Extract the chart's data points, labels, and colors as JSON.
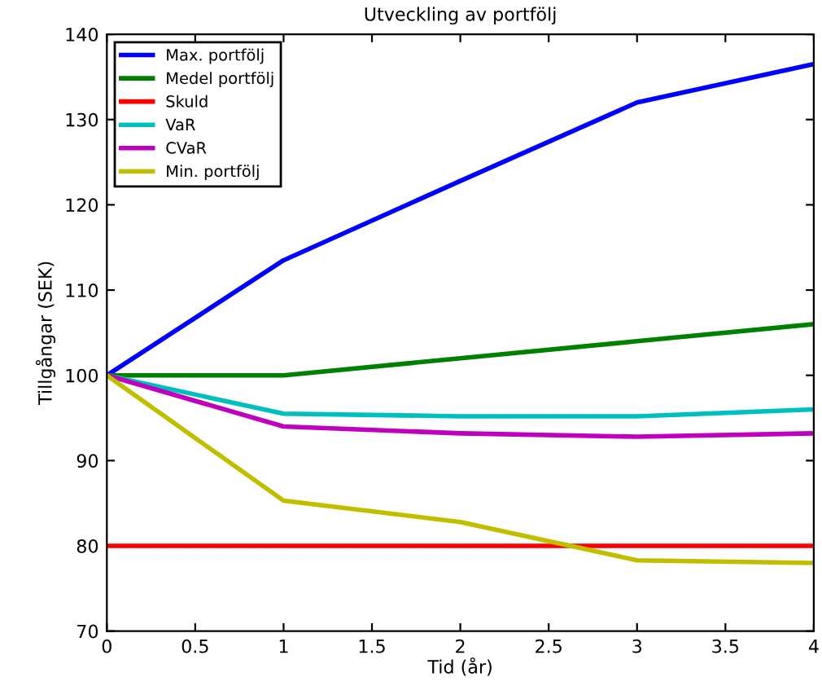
{
  "chart_data": {
    "type": "line",
    "title": "Utveckling av portfölj",
    "xlabel": "Tid (år)",
    "ylabel": "Tillgångar (SEK)",
    "x": [
      0,
      1,
      2,
      3,
      4
    ],
    "series": [
      {
        "name": "Max. portfölj",
        "color": "#0000ff",
        "values": [
          100,
          113.5,
          122.8,
          132,
          136.5
        ]
      },
      {
        "name": "Medel portfölj",
        "color": "#008000",
        "values": [
          100,
          100,
          102,
          104,
          106
        ]
      },
      {
        "name": "Skuld",
        "color": "#ff0000",
        "values": [
          80,
          80,
          80,
          80,
          80
        ]
      },
      {
        "name": "VaR",
        "color": "#00bfbf",
        "values": [
          100,
          95.5,
          95.2,
          95.2,
          96
        ]
      },
      {
        "name": "CVaR",
        "color": "#bf00bf",
        "values": [
          100,
          94,
          93.2,
          92.8,
          93.2
        ]
      },
      {
        "name": "Min. portfölj",
        "color": "#bfbf00",
        "values": [
          100,
          85.3,
          82.8,
          78.3,
          78
        ]
      }
    ],
    "xlim": [
      0,
      4
    ],
    "xticks": [
      0,
      0.5,
      1,
      1.5,
      2,
      2.5,
      3,
      3.5,
      4
    ],
    "ylim": [
      70,
      140
    ],
    "yticks": [
      70,
      80,
      90,
      100,
      110,
      120,
      130,
      140
    ],
    "legend": "top left",
    "grid": false,
    "marker": "none",
    "line_style": "solid"
  }
}
